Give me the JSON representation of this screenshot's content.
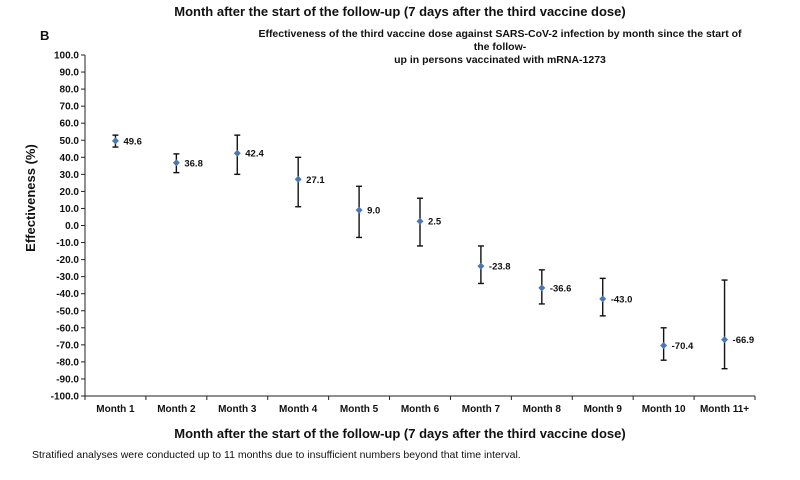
{
  "header": {
    "top_heading": "Month after the start of the follow-up (7 days after the third vaccine dose)",
    "panel_letter": "B"
  },
  "chart_data": {
    "type": "scatter",
    "title": "Effectiveness of the third vaccine dose against SARS-CoV-2 infection by month since the start of the follow-up in persons vaccinated with mRNA-1273",
    "title_lines": [
      "Effectiveness of the third vaccine dose against SARS-CoV-2 infection by month since the start of the follow-",
      "up in persons vaccinated with mRNA-1273"
    ],
    "xlabel": "Month after the start of the follow-up (7 days after the third vaccine dose)",
    "ylabel": "Effectiveness (%)",
    "ylim": [
      -100,
      100
    ],
    "yticks": [
      100,
      90,
      80,
      70,
      60,
      50,
      40,
      30,
      20,
      10,
      0,
      -10,
      -20,
      -30,
      -40,
      -50,
      -60,
      -70,
      -80,
      -90,
      -100
    ],
    "ytick_labels": [
      "100.0",
      "90.0",
      "80.0",
      "70.0",
      "60.0",
      "50.0",
      "40.0",
      "30.0",
      "20.0",
      "10.0",
      "0.0",
      "-10.0",
      "-20.0",
      "-30.0",
      "-40.0",
      "-50.0",
      "-60.0",
      "-70.0",
      "-80.0",
      "-90.0",
      "-100.0"
    ],
    "categories": [
      "Month 1",
      "Month 2",
      "Month 3",
      "Month 4",
      "Month 5",
      "Month 6",
      "Month 7",
      "Month 8",
      "Month 9",
      "Month 10",
      "Month 11+"
    ],
    "values": [
      49.6,
      36.8,
      42.4,
      27.1,
      9.0,
      2.5,
      -23.8,
      -36.6,
      -43.0,
      -70.4,
      -66.9
    ],
    "value_labels": [
      "49.6",
      "36.8",
      "42.4",
      "27.1",
      "9.0",
      "2.5",
      "-23.8",
      "-36.6",
      "-43.0",
      "-70.4",
      "-66.9"
    ],
    "ci_lower": [
      46,
      31,
      30,
      11,
      -7,
      -12,
      -34,
      -46,
      -53,
      -79,
      -84
    ],
    "ci_upper": [
      53,
      42,
      53,
      40,
      23,
      16,
      -12,
      -26,
      -31,
      -60,
      -32
    ],
    "grid": false,
    "legend": "none",
    "marker_color": "#4a78b5",
    "errorbar_color": "#111111"
  },
  "footnote": "Stratified analyses were conducted up to 11 months due to insufficient numbers beyond that time interval."
}
